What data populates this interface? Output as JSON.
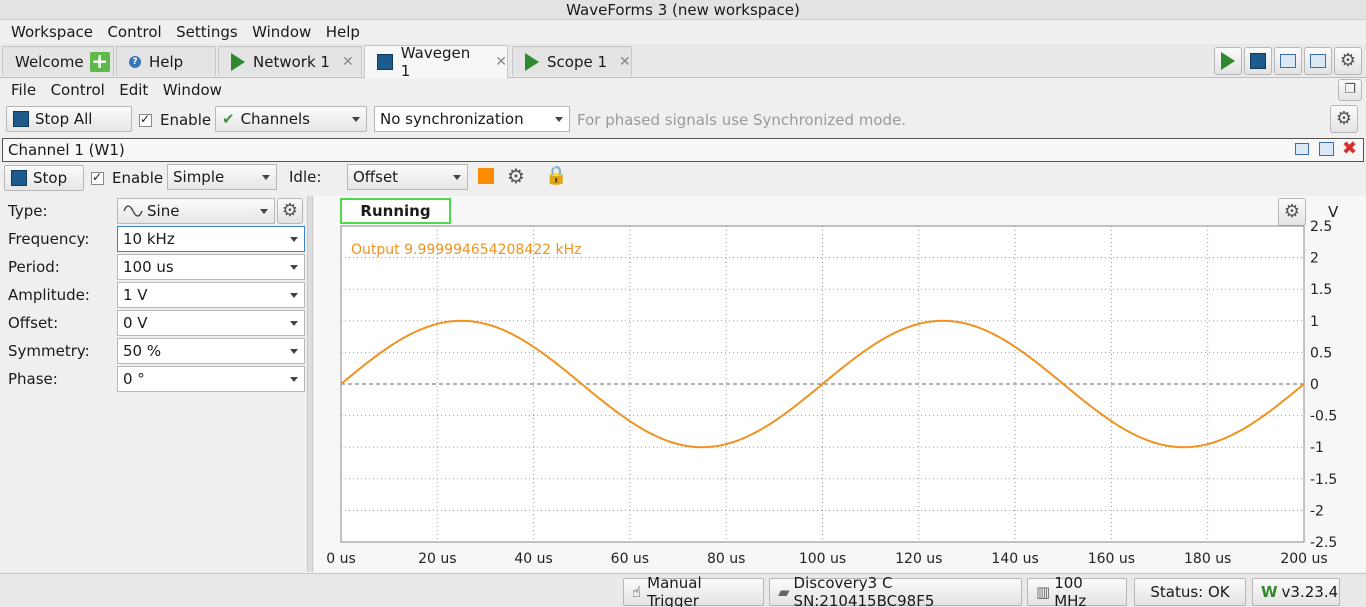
{
  "window": {
    "title": "WaveForms 3 (new workspace)"
  },
  "main_menu": [
    "Workspace",
    "Control",
    "Settings",
    "Window",
    "Help"
  ],
  "tabs": [
    {
      "label": "Welcome",
      "icon": "plus-icon"
    },
    {
      "label": "Help",
      "icon": "help-icon"
    },
    {
      "label": "Network 1",
      "icon": "play-icon",
      "closable": true
    },
    {
      "label": "Wavegen 1",
      "icon": "stop-icon",
      "closable": true,
      "active": true
    },
    {
      "label": "Scope 1",
      "icon": "play-icon",
      "closable": true
    }
  ],
  "instrument_menu": [
    "File",
    "Control",
    "Edit",
    "Window"
  ],
  "toolbar": {
    "stop_all": "Stop All",
    "enable": "Enable",
    "channels": "Channels",
    "sync": "No synchronization",
    "hint": "For phased signals use Synchronized mode."
  },
  "channel": {
    "title": "Channel 1 (W1)",
    "stop": "Stop",
    "enable": "Enable",
    "mode": "Simple",
    "idle_label": "Idle:",
    "idle_value": "Offset",
    "color": "#ff8c00"
  },
  "params": [
    {
      "label": "Type:",
      "value": "Sine"
    },
    {
      "label": "Frequency:",
      "value": "10 kHz"
    },
    {
      "label": "Period:",
      "value": "100 us"
    },
    {
      "label": "Amplitude:",
      "value": "1 V"
    },
    {
      "label": "Offset:",
      "value": "0 V"
    },
    {
      "label": "Symmetry:",
      "value": "50 %"
    },
    {
      "label": "Phase:",
      "value": "0 °"
    }
  ],
  "plot": {
    "status": "Running",
    "output_text": "Output 9.999994654208422 kHz",
    "unit": "V"
  },
  "chart_data": {
    "type": "line",
    "y_ticks": [
      "2.5",
      "2",
      "1.5",
      "1",
      "0.5",
      "0",
      "-0.5",
      "-1",
      "-1.5",
      "-2",
      "-2.5"
    ],
    "x_ticks": [
      "0 us",
      "20 us",
      "40 us",
      "60 us",
      "80 us",
      "100 us",
      "120 us",
      "140 us",
      "160 us",
      "180 us",
      "200 us"
    ],
    "xlim": [
      0,
      200
    ],
    "ylim": [
      -2.5,
      2.5
    ],
    "series": [
      {
        "amplitude": 1,
        "frequency_khz": 10,
        "color": "#f0921f"
      }
    ],
    "grid": true
  },
  "statusbar": {
    "manual_trigger": "Manual Trigger",
    "device": "Discovery3 C SN:210415BC98F5",
    "clock": "100 MHz",
    "status": "Status: OK",
    "version": "v3.23.4"
  }
}
